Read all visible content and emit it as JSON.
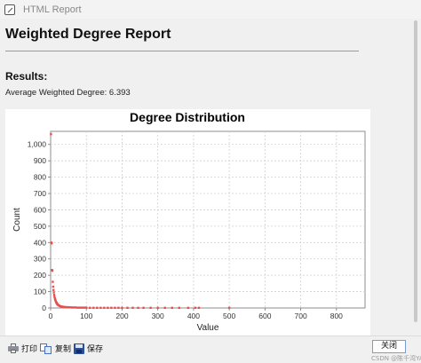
{
  "window": {
    "title": "HTML Report"
  },
  "report": {
    "title": "Weighted Degree Report",
    "results_label": "Results:",
    "average_label": "Average Weighted Degree:",
    "average_value": "6.393"
  },
  "chart_data": {
    "type": "scatter",
    "title": "Degree Distribution",
    "xlabel": "Value",
    "ylabel": "Count",
    "xlim": [
      0,
      880
    ],
    "ylim": [
      0,
      1080
    ],
    "x_ticks": [
      0,
      100,
      200,
      300,
      400,
      500,
      600,
      700,
      800
    ],
    "y_ticks": [
      0,
      100,
      200,
      300,
      400,
      500,
      600,
      700,
      800,
      900,
      1000
    ],
    "y_tick_labels": [
      "0",
      "100",
      "200",
      "300",
      "400",
      "500",
      "600",
      "700",
      "800",
      "900",
      "1,000"
    ],
    "grid": true,
    "series_color": "#e8504f",
    "points": [
      [
        1,
        1063
      ],
      [
        2,
        400
      ],
      [
        3,
        395
      ],
      [
        4,
        232
      ],
      [
        5,
        228
      ],
      [
        6,
        160
      ],
      [
        7,
        130
      ],
      [
        8,
        110
      ],
      [
        9,
        95
      ],
      [
        10,
        80
      ],
      [
        11,
        68
      ],
      [
        12,
        58
      ],
      [
        13,
        50
      ],
      [
        14,
        44
      ],
      [
        15,
        38
      ],
      [
        16,
        34
      ],
      [
        17,
        30
      ],
      [
        18,
        26
      ],
      [
        19,
        23
      ],
      [
        20,
        20
      ],
      [
        22,
        17
      ],
      [
        24,
        14
      ],
      [
        26,
        12
      ],
      [
        28,
        10
      ],
      [
        30,
        9
      ],
      [
        33,
        8
      ],
      [
        36,
        7
      ],
      [
        40,
        6
      ],
      [
        44,
        5
      ],
      [
        48,
        5
      ],
      [
        52,
        4
      ],
      [
        56,
        4
      ],
      [
        60,
        3
      ],
      [
        65,
        3
      ],
      [
        70,
        3
      ],
      [
        75,
        2
      ],
      [
        80,
        2
      ],
      [
        85,
        2
      ],
      [
        90,
        2
      ],
      [
        95,
        2
      ],
      [
        100,
        2
      ],
      [
        110,
        1
      ],
      [
        120,
        1
      ],
      [
        130,
        1
      ],
      [
        140,
        1
      ],
      [
        150,
        1
      ],
      [
        160,
        1
      ],
      [
        170,
        1
      ],
      [
        180,
        1
      ],
      [
        190,
        1
      ],
      [
        200,
        1
      ],
      [
        215,
        1
      ],
      [
        230,
        1
      ],
      [
        245,
        1
      ],
      [
        260,
        1
      ],
      [
        280,
        1
      ],
      [
        300,
        1
      ],
      [
        320,
        1
      ],
      [
        340,
        1
      ],
      [
        360,
        1
      ],
      [
        385,
        1
      ],
      [
        405,
        1
      ],
      [
        415,
        1
      ],
      [
        500,
        1
      ]
    ]
  },
  "toolbar": {
    "print_label": "打印",
    "copy_label": "复制",
    "save_label": "保存",
    "close_label": "关闭"
  },
  "watermark": "CSDN @陈千湾YAN"
}
